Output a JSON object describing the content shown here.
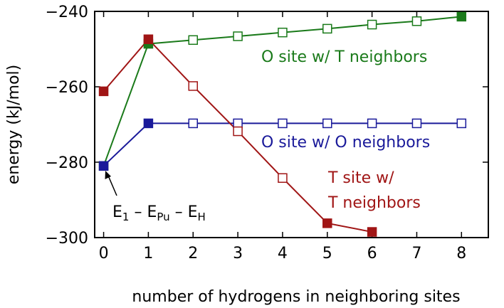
{
  "chart_data": {
    "type": "line",
    "xlabel": "number of hydrogens in neighboring sites",
    "ylabel": "energy (kJ/mol)",
    "xlim": [
      -0.2,
      8.6
    ],
    "ylim": [
      -300,
      -240
    ],
    "xticks": [
      0,
      1,
      2,
      3,
      4,
      5,
      6,
      7,
      8
    ],
    "yticks": [
      -300,
      -280,
      -260,
      -240
    ],
    "grid": false,
    "series": [
      {
        "name": "O site w/ T neighbors",
        "color": "#1a7a1a",
        "x": [
          0,
          1,
          2,
          3,
          4,
          5,
          6,
          7,
          8
        ],
        "y": [
          -281,
          -248.6,
          -247.6,
          -246.6,
          -245.6,
          -244.6,
          -243.5,
          -242.6,
          -241.4
        ],
        "filled": [
          true,
          true,
          false,
          false,
          false,
          false,
          false,
          false,
          true
        ]
      },
      {
        "name": "O site w/ O neighbors",
        "color": "#1a1a9a",
        "x": [
          0,
          1,
          2,
          3,
          4,
          5,
          6,
          7,
          8
        ],
        "y": [
          -281,
          -269.7,
          -269.7,
          -269.7,
          -269.7,
          -269.7,
          -269.7,
          -269.7,
          -269.7
        ],
        "filled": [
          true,
          true,
          false,
          false,
          false,
          false,
          false,
          false,
          false
        ]
      },
      {
        "name": "T site w/ T neighbors",
        "color": "#a01515",
        "x": [
          0,
          1,
          2,
          3,
          4,
          5,
          6
        ],
        "y": [
          -261.2,
          -247.4,
          -259.8,
          -271.8,
          -284.2,
          -296.2,
          -298.5
        ],
        "filled": [
          true,
          true,
          false,
          false,
          false,
          true,
          true
        ]
      }
    ],
    "annotations": {
      "green_label": "O site w/ T neighbors",
      "blue_label": "O site w/ O neighbors",
      "red_label_line1": "T site w/",
      "red_label_line2": "T neighbors",
      "formula": {
        "e1": "E",
        "e1_sub": "1",
        "minus1": " – E",
        "epu_sub": "Pu",
        "minus2": " – E",
        "eh_sub": "H"
      }
    }
  }
}
